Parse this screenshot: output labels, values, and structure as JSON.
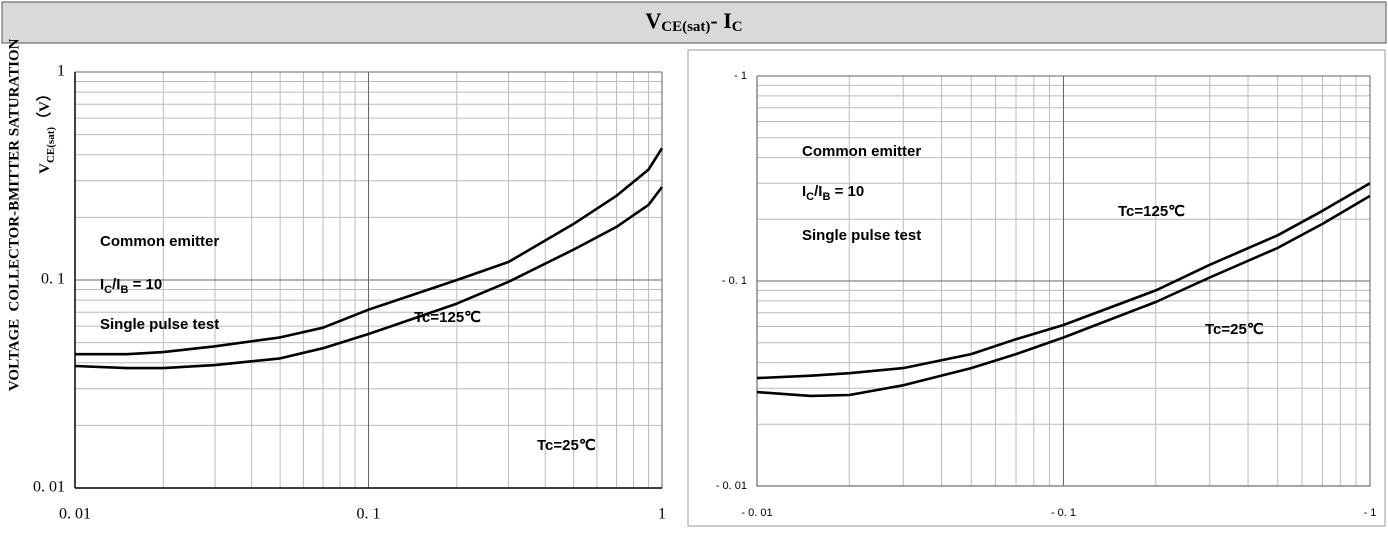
{
  "title": [
    "V",
    "CE(sat)",
    "- I",
    "C"
  ],
  "chart_data": [
    {
      "type": "line",
      "scale": "log",
      "ylabel": [
        "COLLECTOR-BMITTER SATURATION",
        "VOLTAGE",
        [
          "V",
          "CE(sat)",
          "（V）"
        ]
      ],
      "x": [
        0.01,
        0.015,
        0.02,
        0.03,
        0.05,
        0.07,
        0.1,
        0.2,
        0.3,
        0.5,
        0.7,
        0.9,
        1
      ],
      "series": [
        {
          "color": "#000000",
          "values": [
            0.044,
            0.044,
            0.045,
            0.048,
            0.053,
            0.059,
            0.072,
            0.1,
            0.122,
            0.186,
            0.254,
            0.34,
            0.43
          ]
        },
        {
          "color": "#000000",
          "values": [
            0.0386,
            0.0377,
            0.0377,
            0.039,
            0.042,
            0.047,
            0.055,
            0.077,
            0.098,
            0.14,
            0.18,
            0.23,
            0.28
          ]
        }
      ],
      "xlim": [
        0.01,
        1
      ],
      "ylim": [
        0.01,
        1
      ],
      "xticks": [
        {
          "value": 0.01,
          "label": "0. 01"
        },
        {
          "value": 0.1,
          "label": "0. 1"
        },
        1
      ],
      "yticks": [
        {
          "value": 0.01,
          "label": "0. 01"
        },
        {
          "value": 0.1,
          "label": "0. 1"
        },
        1
      ],
      "grid": true,
      "annotations": [
        "Common emitter",
        [
          "I",
          "C",
          "/I",
          "B",
          " = 10"
        ],
        "Single pulse test",
        "Tc=125℃",
        "Tc=25℃"
      ]
    },
    {
      "type": "line",
      "scale": "log",
      "x": [
        -0.01,
        -0.015,
        -0.02,
        -0.03,
        -0.05,
        -0.07,
        -0.1,
        -0.2,
        -0.3,
        -0.5,
        -0.7,
        -1
      ],
      "series": [
        {
          "color": "#000000",
          "values": [
            -0.0336,
            -0.0345,
            -0.0355,
            -0.0376,
            -0.044,
            -0.052,
            -0.061,
            -0.09,
            -0.12,
            -0.167,
            -0.22,
            -0.3
          ]
        },
        {
          "color": "#000000",
          "values": [
            -0.0287,
            -0.0275,
            -0.0278,
            -0.031,
            -0.0376,
            -0.044,
            -0.053,
            -0.079,
            -0.104,
            -0.145,
            -0.19,
            -0.26
          ]
        }
      ],
      "xlim": [
        -0.01,
        -1
      ],
      "ylim": [
        -0.01,
        -1
      ],
      "xticks": [
        {
          "value": -0.01,
          "label": "- 0. 01"
        },
        {
          "value": -0.1,
          "label": "- 0. 1"
        },
        {
          "value": -1,
          "label": "- 1"
        }
      ],
      "yticks": [
        {
          "value": -0.01,
          "label": "- 0. 01"
        },
        {
          "value": -0.1,
          "label": "- 0. 1"
        },
        {
          "value": -1,
          "label": "- 1"
        }
      ],
      "grid": true,
      "annotations": [
        "Common emitter",
        [
          "I",
          "C",
          "/I",
          "B",
          " = 10"
        ],
        "Single pulse test",
        "Tc=125℃",
        "Tc=25℃"
      ]
    }
  ]
}
